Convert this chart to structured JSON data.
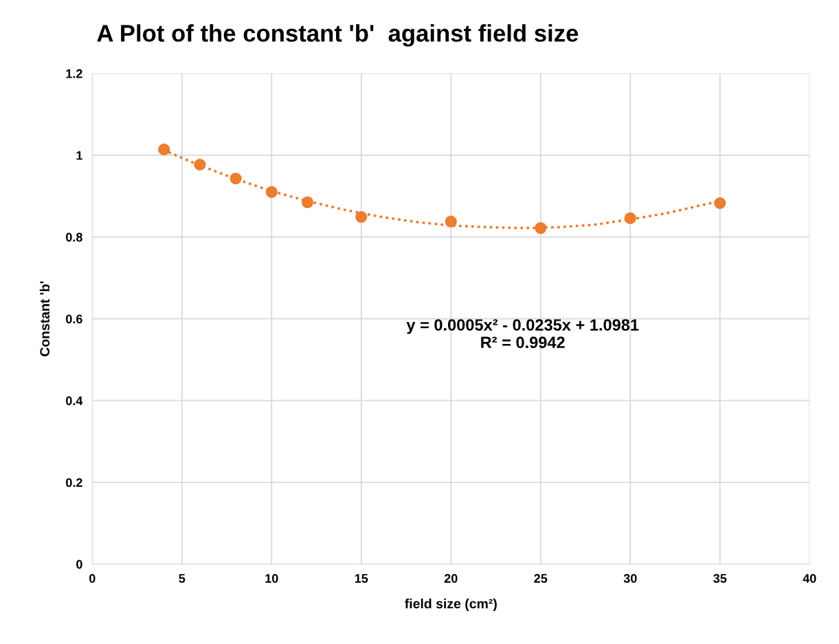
{
  "chart_data": {
    "type": "scatter",
    "title": "A Plot of the constant 'b'  against field size",
    "xlabel": "field size (cm²)",
    "ylabel": "Constant 'b'",
    "x": [
      4,
      6,
      8,
      10,
      12,
      15,
      20,
      25,
      30,
      35
    ],
    "series": [
      {
        "color": "#ed7d31",
        "values": [
          1.014,
          0.977,
          0.943,
          0.91,
          0.885,
          0.849,
          0.838,
          0.822,
          0.846,
          0.883
        ],
        "marker": "circle"
      },
      {
        "type": "line",
        "color": "#ed7d31",
        "line_style": "dotted",
        "marker": "none",
        "x": [
          4,
          6,
          8,
          10,
          12,
          14,
          16,
          18,
          20,
          22,
          24,
          26,
          28,
          30,
          32,
          35
        ],
        "values": [
          1.012,
          0.975,
          0.942,
          0.912,
          0.888,
          0.867,
          0.85,
          0.837,
          0.828,
          0.824,
          0.822,
          0.824,
          0.83,
          0.843,
          0.858,
          0.888
        ]
      }
    ],
    "annotations": [
      "y = 0.0005x² - 0.0235x + 1.0981\nR² = 0.9942"
    ],
    "xlim": [
      0,
      40
    ],
    "xticks": [
      0,
      5,
      10,
      15,
      20,
      25,
      30,
      35,
      40
    ],
    "ylim": [
      0,
      1.2
    ],
    "yticks": [
      0,
      0.2,
      0.4,
      0.6,
      0.8,
      1,
      1.2
    ],
    "grid": true,
    "legend": false
  }
}
